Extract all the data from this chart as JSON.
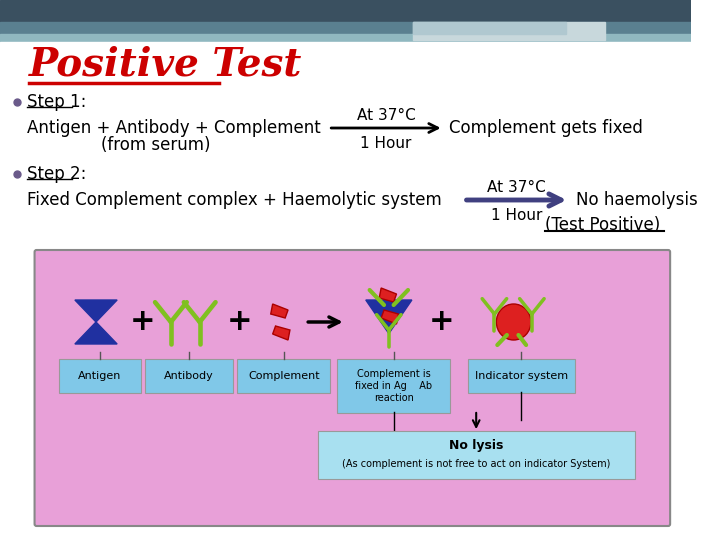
{
  "bg_color": "#ffffff",
  "title_text": "Positive Test",
  "title_color": "#cc0000",
  "step1_label": "Step 1:",
  "step1_line1": "Antigen + Antibody + Complement",
  "step1_line1b": "(from serum)",
  "step1_arrow_label_top": "At 37°C",
  "step1_arrow_label_bot": "1 Hour",
  "step1_result": "Complement gets fixed",
  "step2_label": "Step 2:",
  "step2_line1": "Fixed Complement complex + Haemolytic system",
  "step2_arrow_label_top": "At 37°C",
  "step2_arrow_label_bot": "1 Hour",
  "step2_result": "No haemolysis",
  "step2_result2": "(Test Positive)",
  "bullet_color": "#6a5a8a",
  "text_color": "#000000",
  "arrow1_color": "#000000",
  "arrow2_color": "#404080",
  "diagram_bg": "#e8a0d8",
  "diagram_label_bg": "#80c8e8",
  "diagram_note_bg": "#a8e0f0",
  "header_dark": "#3a5060",
  "header_mid": "#5a8090",
  "header_light": "#90b8c0",
  "deco_rect1": "#c8d8dc",
  "deco_rect2": "#b0c8d0",
  "blue_shape": "#2030a0",
  "green_color": "#80c020",
  "red_color": "#dd2020",
  "red_edge": "#aa0000"
}
